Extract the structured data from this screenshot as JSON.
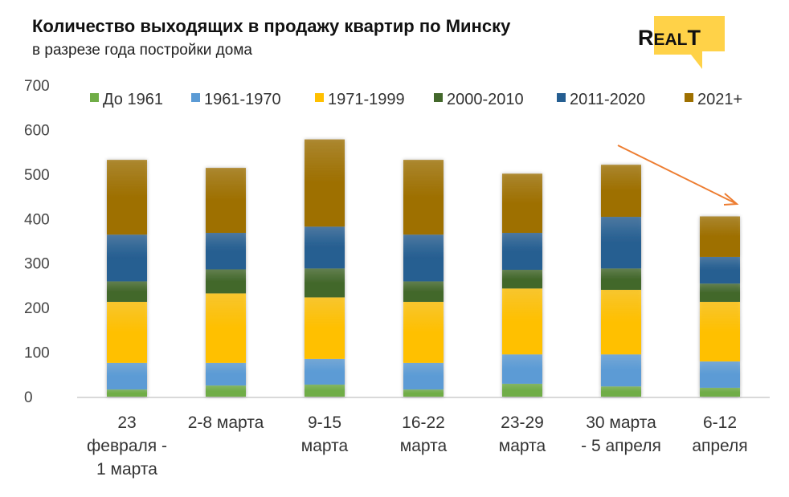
{
  "header": {
    "title": "Количество выходящих в продажу квартир по Минску",
    "subtitle": "в разрезе года постройки дома",
    "logo": "REALT"
  },
  "chart_data": {
    "type": "bar",
    "stacked": true,
    "categories": [
      [
        "23",
        "февраля -",
        "1 марта"
      ],
      [
        "2-8 марта"
      ],
      [
        "9-15",
        "марта"
      ],
      [
        "16-22",
        "марта"
      ],
      [
        "23-29",
        "марта"
      ],
      [
        "30 марта",
        "- 5 апреля"
      ],
      [
        "6-12",
        "апреля"
      ]
    ],
    "series": [
      {
        "name": "До 1961",
        "color": "#70ad47",
        "values": [
          16,
          25,
          27,
          16,
          29,
          23,
          20
        ]
      },
      {
        "name": "1961-1970",
        "color": "#5b9bd5",
        "values": [
          60,
          51,
          58,
          60,
          66,
          72,
          59
        ]
      },
      {
        "name": "1971-1999",
        "color": "#ffc000",
        "values": [
          137,
          156,
          138,
          137,
          148,
          145,
          134
        ]
      },
      {
        "name": "2000-2010",
        "color": "#43682b",
        "values": [
          46,
          54,
          65,
          46,
          42,
          48,
          41
        ]
      },
      {
        "name": "2011-2020",
        "color": "#255e91",
        "values": [
          105,
          82,
          94,
          105,
          83,
          116,
          60
        ]
      },
      {
        "name": "2021+",
        "color": "#9e7000",
        "values": [
          168,
          146,
          196,
          168,
          133,
          117,
          91
        ]
      }
    ],
    "yticks": [
      "0",
      "100",
      "200",
      "300",
      "400",
      "500",
      "600",
      "700"
    ],
    "ylim": [
      0,
      700
    ],
    "grid": false,
    "legend": "top",
    "annotation": {
      "type": "arrow",
      "color": "#ed7d31",
      "meaning": "downward trend"
    }
  }
}
